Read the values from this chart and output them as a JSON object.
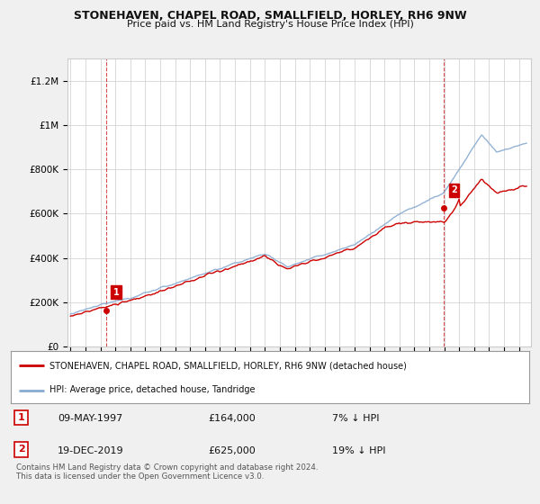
{
  "title": "STONEHAVEN, CHAPEL ROAD, SMALLFIELD, HORLEY, RH6 9NW",
  "subtitle": "Price paid vs. HM Land Registry's House Price Index (HPI)",
  "ylabel_ticks": [
    "£0",
    "£200K",
    "£400K",
    "£600K",
    "£800K",
    "£1M",
    "£1.2M"
  ],
  "ytick_values": [
    0,
    200000,
    400000,
    600000,
    800000,
    1000000,
    1200000
  ],
  "ylim": [
    0,
    1300000
  ],
  "xlim_start": 1994.8,
  "xlim_end": 2025.8,
  "red_color": "#cc0000",
  "blue_color": "#88aad0",
  "dashed_red_color": "#cc0000",
  "point1_x": 1997.36,
  "point1_y": 164000,
  "point2_x": 2019.95,
  "point2_y": 625000,
  "legend_red": "STONEHAVEN, CHAPEL ROAD, SMALLFIELD, HORLEY, RH6 9NW (detached house)",
  "legend_blue": "HPI: Average price, detached house, Tandridge",
  "annotation1_date": "09-MAY-1997",
  "annotation1_price": "£164,000",
  "annotation1_hpi": "7% ↓ HPI",
  "annotation2_date": "19-DEC-2019",
  "annotation2_price": "£625,000",
  "annotation2_hpi": "19% ↓ HPI",
  "footnote": "Contains HM Land Registry data © Crown copyright and database right 2024.\nThis data is licensed under the Open Government Licence v3.0.",
  "background_color": "#f0f0f0",
  "plot_bg_color": "#ffffff",
  "grid_color": "#cccccc",
  "title_fontsize": 9,
  "subtitle_fontsize": 8
}
